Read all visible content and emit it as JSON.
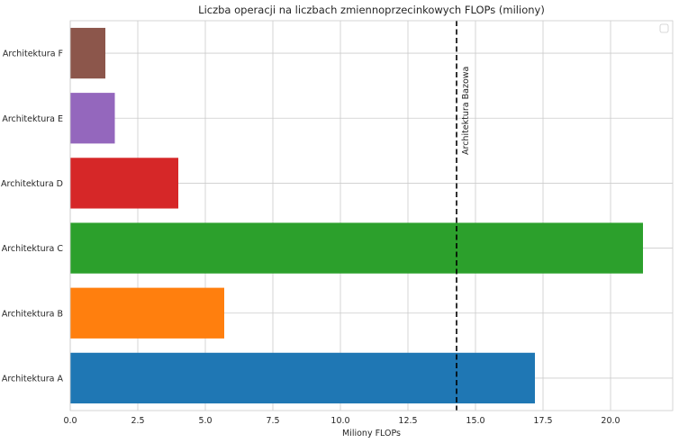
{
  "chart_data": {
    "type": "bar",
    "orientation": "horizontal",
    "title": "Liczba operacji na liczbach zmiennoprzecinkowych FLOPs (miliony)",
    "xlabel": "Miliony FLOPs",
    "ylabel": "",
    "categories": [
      "Architektura A",
      "Architektura B",
      "Architektura C",
      "Architektura D",
      "Architektura E",
      "Architektura F"
    ],
    "values": [
      17.2,
      5.7,
      21.2,
      4.0,
      1.65,
      1.3
    ],
    "colors": [
      "#1f77b4",
      "#ff7f0e",
      "#2ca02c",
      "#d62728",
      "#9467bd",
      "#8c564b"
    ],
    "xlim": [
      0,
      22.3
    ],
    "xticks": [
      "0.0",
      "2.5",
      "5.0",
      "7.5",
      "10.0",
      "12.5",
      "15.0",
      "17.5",
      "20.0"
    ],
    "xtick_values": [
      0,
      2.5,
      5,
      7.5,
      10,
      12.5,
      15,
      17.5,
      20
    ],
    "grid": true,
    "legend": "top-right (empty)",
    "reference_line": {
      "value": 14.3,
      "label": "Architektura Bazowa",
      "style": "dashed",
      "color": "#000000"
    }
  }
}
